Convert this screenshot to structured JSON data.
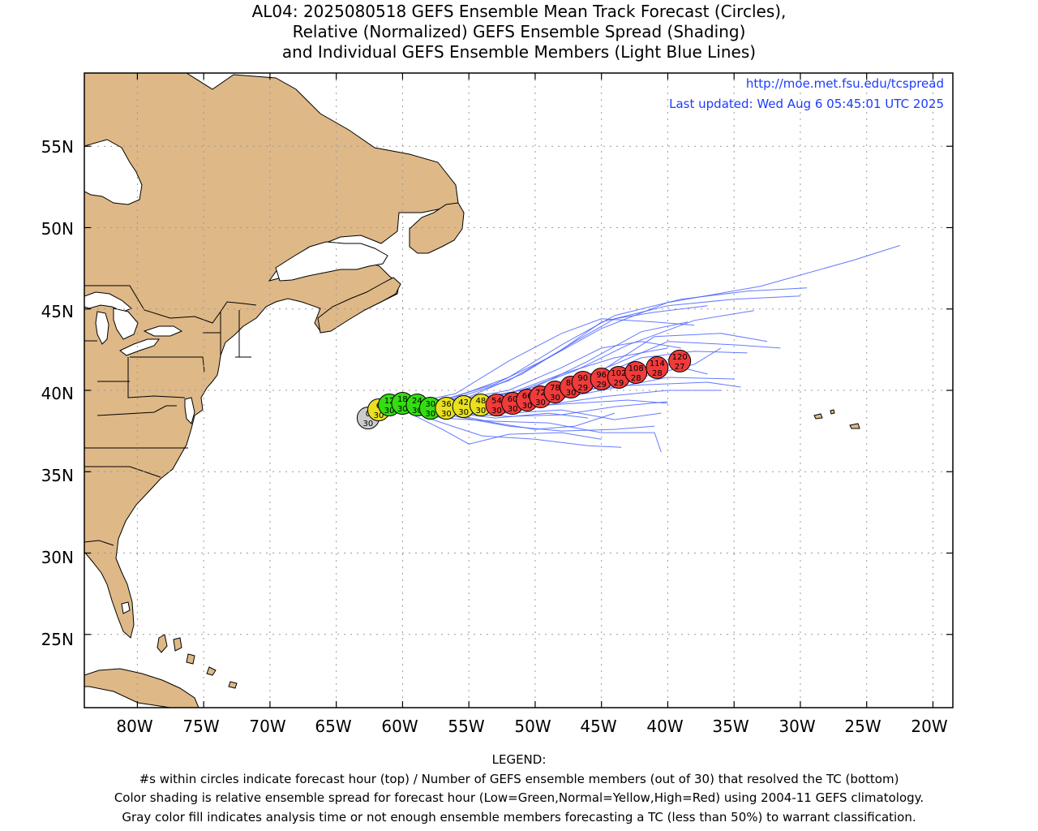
{
  "title": {
    "line1": "AL04: 2025080518 GEFS Ensemble Mean Track Forecast (Circles),",
    "line2": "Relative (Normalized) GEFS Ensemble Spread (Shading)",
    "line3": "and Individual GEFS Ensemble Members (Light Blue Lines)"
  },
  "credits": {
    "url": "http://moe.met.fsu.edu/tcspread",
    "updated": "Last updated: Wed Aug 6 05:45:01 UTC 2025"
  },
  "axes": {
    "lat_labels": [
      "55N",
      "50N",
      "45N",
      "40N",
      "35N",
      "30N",
      "25N"
    ],
    "lon_labels": [
      "80W",
      "75W",
      "70W",
      "65W",
      "60W",
      "55W",
      "50W",
      "45W",
      "40W",
      "35W",
      "30W",
      "25W",
      "20W"
    ]
  },
  "colors": {
    "land": "#deb887",
    "ocean": "#ffffff",
    "member_tracks": "#4a63ff",
    "spread_low": "#33dd11",
    "spread_normal": "#e8e020",
    "spread_high": "#ef3b3b",
    "analysis": "#cccccc",
    "credit_text": "#1d3bff"
  },
  "chart_data": {
    "type": "map-track",
    "lon_range": [
      -84,
      -18.5
    ],
    "lat_range": [
      20.5,
      59.5
    ],
    "grid": true,
    "mean_track": [
      {
        "hour": "0",
        "members": "30",
        "lon": -62.6,
        "lat": 38.3,
        "spread": "analysis"
      },
      {
        "hour": "6",
        "members": "30",
        "lon": -61.8,
        "lat": 38.8,
        "spread": "normal"
      },
      {
        "hour": "12",
        "members": "30",
        "lon": -61.0,
        "lat": 39.1,
        "spread": "low"
      },
      {
        "hour": "18",
        "members": "30",
        "lon": -60.0,
        "lat": 39.2,
        "spread": "low"
      },
      {
        "hour": "24",
        "members": "30",
        "lon": -58.9,
        "lat": 39.1,
        "spread": "low"
      },
      {
        "hour": "30",
        "members": "30",
        "lon": -57.9,
        "lat": 38.9,
        "spread": "low"
      },
      {
        "hour": "36",
        "members": "30",
        "lon": -56.7,
        "lat": 38.9,
        "spread": "normal"
      },
      {
        "hour": "42",
        "members": "30",
        "lon": -55.4,
        "lat": 39.0,
        "spread": "normal"
      },
      {
        "hour": "48",
        "members": "30",
        "lon": -54.1,
        "lat": 39.1,
        "spread": "normal"
      },
      {
        "hour": "54",
        "members": "30",
        "lon": -52.9,
        "lat": 39.1,
        "spread": "high"
      },
      {
        "hour": "60",
        "members": "30",
        "lon": -51.7,
        "lat": 39.2,
        "spread": "high"
      },
      {
        "hour": "66",
        "members": "30",
        "lon": -50.6,
        "lat": 39.4,
        "spread": "high"
      },
      {
        "hour": "72",
        "members": "30",
        "lon": -49.6,
        "lat": 39.6,
        "spread": "high"
      },
      {
        "hour": "78",
        "members": "30",
        "lon": -48.5,
        "lat": 39.9,
        "spread": "high"
      },
      {
        "hour": "84",
        "members": "30",
        "lon": -47.3,
        "lat": 40.2,
        "spread": "high"
      },
      {
        "hour": "90",
        "members": "29",
        "lon": -46.4,
        "lat": 40.5,
        "spread": "high"
      },
      {
        "hour": "96",
        "members": "29",
        "lon": -45.0,
        "lat": 40.7,
        "spread": "high"
      },
      {
        "hour": "102",
        "members": "29",
        "lon": -43.7,
        "lat": 40.8,
        "spread": "high"
      },
      {
        "hour": "108",
        "members": "28",
        "lon": -42.4,
        "lat": 41.1,
        "spread": "high"
      },
      {
        "hour": "114",
        "members": "28",
        "lon": -40.8,
        "lat": 41.4,
        "spread": "high"
      },
      {
        "hour": "120",
        "members": "27",
        "lon": -39.1,
        "lat": 41.8,
        "spread": "high"
      }
    ]
  },
  "legend": {
    "heading": "LEGEND:",
    "line1": "#s within circles indicate forecast hour (top) / Number of GEFS ensemble members (out of 30) that resolved the TC (bottom)",
    "line2": "Color shading is relative ensemble spread for forecast hour (Low=Green,Normal=Yellow,High=Red) using 2004-11 GEFS climatology.",
    "line3": "Gray color fill indicates analysis time or not enough ensemble members forecasting a TC (less than 50%) to warrant classification."
  }
}
